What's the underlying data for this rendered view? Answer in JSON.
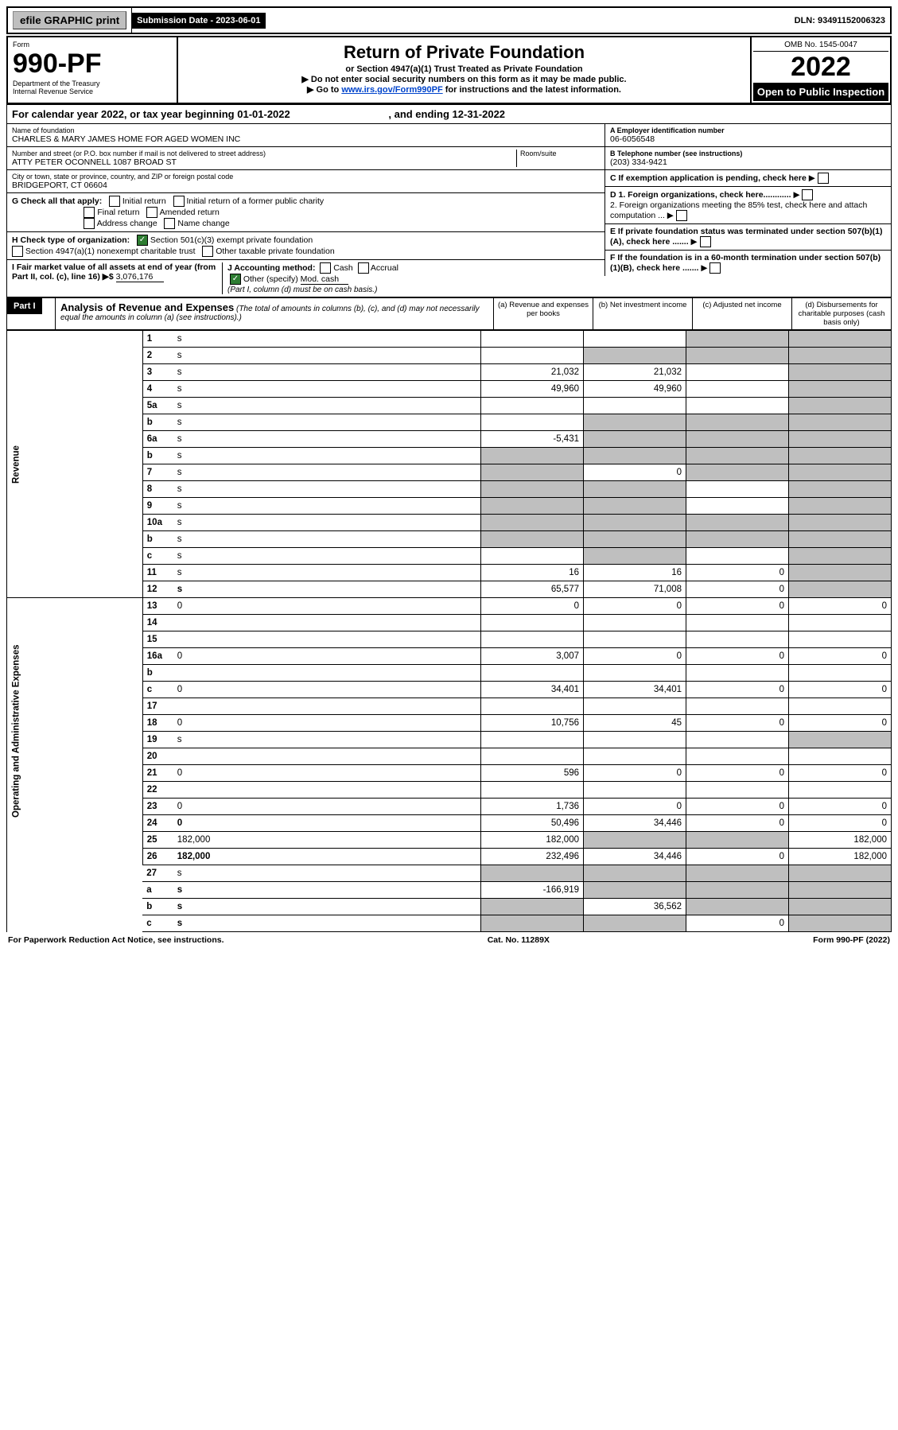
{
  "topbar": {
    "efile": "efile GRAPHIC print",
    "submission_lbl": "Submission Date - ",
    "submission_date": "2023-06-01",
    "dln_lbl": "DLN: ",
    "dln": "93491152006323"
  },
  "header": {
    "form_word": "Form",
    "form_no": "990-PF",
    "dept1": "Department of the Treasury",
    "dept2": "Internal Revenue Service",
    "title": "Return of Private Foundation",
    "subtitle": "or Section 4947(a)(1) Trust Treated as Private Foundation",
    "note1": "▶ Do not enter social security numbers on this form as it may be made public.",
    "note2_pre": "▶ Go to ",
    "note2_link": "www.irs.gov/Form990PF",
    "note2_post": " for instructions and the latest information.",
    "omb_lbl": "OMB No. ",
    "omb": "1545-0047",
    "year": "2022",
    "open": "Open to Public Inspection"
  },
  "cal_year": {
    "pre": "For calendar year 2022, or tax year beginning ",
    "begin": "01-01-2022",
    "end_lbl": " , and ending ",
    "end": "12-31-2022"
  },
  "id": {
    "name_lbl": "Name of foundation",
    "name": "CHARLES & MARY JAMES HOME FOR AGED WOMEN INC",
    "addr_lbl": "Number and street (or P.O. box number if mail is not delivered to street address)",
    "addr": "ATTY PETER OCONNELL 1087 BROAD ST",
    "room_lbl": "Room/suite",
    "city_lbl": "City or town, state or province, country, and ZIP or foreign postal code",
    "city": "BRIDGEPORT, CT  06604",
    "ein_lbl": "A Employer identification number",
    "ein": "06-6056548",
    "tel_lbl": "B Telephone number (see instructions)",
    "tel": "(203) 334-9421",
    "c_lbl": "C If exemption application is pending, check here",
    "d1": "D 1. Foreign organizations, check here............",
    "d2": "2. Foreign organizations meeting the 85% test, check here and attach computation ...",
    "e_lbl": "E If private foundation status was terminated under section 507(b)(1)(A), check here .......",
    "f_lbl": "F If the foundation is in a 60-month termination under section 507(b)(1)(B), check here .......",
    "g_lbl": "G Check all that apply:",
    "g_opts": [
      "Initial return",
      "Final return",
      "Address change",
      "Initial return of a former public charity",
      "Amended return",
      "Name change"
    ],
    "h_lbl": "H Check type of organization:",
    "h_opt1": "Section 501(c)(3) exempt private foundation",
    "h_opt2": "Section 4947(a)(1) nonexempt charitable trust",
    "h_opt3": "Other taxable private foundation",
    "i_lbl": "I Fair market value of all assets at end of year (from Part II, col. (c), line 16) ▶$",
    "i_val": "3,076,176",
    "j_lbl": "J Accounting method:",
    "j_cash": "Cash",
    "j_acc": "Accrual",
    "j_other": "Other (specify)",
    "j_val": "Mod. cash",
    "j_note": "(Part I, column (d) must be on cash basis.)"
  },
  "part1": {
    "label": "Part I",
    "title": "Analysis of Revenue and Expenses",
    "desc": "(The total of amounts in columns (b), (c), and (d) may not necessarily equal the amounts in column (a) (see instructions).)",
    "cols": {
      "a": "(a) Revenue and expenses per books",
      "b": "(b) Net investment income",
      "c": "(c) Adjusted net income",
      "d": "(d) Disbursements for charitable purposes (cash basis only)"
    }
  },
  "rows": [
    {
      "n": "1",
      "d": "s",
      "a": "",
      "b": "",
      "c": "s",
      "sec": "rev"
    },
    {
      "n": "2",
      "d": "s",
      "a": "",
      "b": "s",
      "c": "s",
      "sec": "rev"
    },
    {
      "n": "3",
      "d": "s",
      "a": "21,032",
      "b": "21,032",
      "c": "",
      "sec": "rev"
    },
    {
      "n": "4",
      "d": "s",
      "a": "49,960",
      "b": "49,960",
      "c": "",
      "sec": "rev"
    },
    {
      "n": "5a",
      "d": "s",
      "a": "",
      "b": "",
      "c": "",
      "sec": "rev"
    },
    {
      "n": "b",
      "d": "s",
      "a": "",
      "b": "s",
      "c": "s",
      "sec": "rev"
    },
    {
      "n": "6a",
      "d": "s",
      "a": "-5,431",
      "b": "s",
      "c": "s",
      "sec": "rev"
    },
    {
      "n": "b",
      "d": "s",
      "a": "s",
      "b": "s",
      "c": "s",
      "sec": "rev"
    },
    {
      "n": "7",
      "d": "s",
      "a": "s",
      "b": "0",
      "c": "s",
      "sec": "rev"
    },
    {
      "n": "8",
      "d": "s",
      "a": "s",
      "b": "s",
      "c": "",
      "sec": "rev"
    },
    {
      "n": "9",
      "d": "s",
      "a": "s",
      "b": "s",
      "c": "",
      "sec": "rev"
    },
    {
      "n": "10a",
      "d": "s",
      "a": "s",
      "b": "s",
      "c": "s",
      "sec": "rev"
    },
    {
      "n": "b",
      "d": "s",
      "a": "s",
      "b": "s",
      "c": "s",
      "sec": "rev"
    },
    {
      "n": "c",
      "d": "s",
      "a": "",
      "b": "s",
      "c": "",
      "sec": "rev"
    },
    {
      "n": "11",
      "d": "s",
      "a": "16",
      "b": "16",
      "c": "0",
      "sec": "rev"
    },
    {
      "n": "12",
      "d": "s",
      "a": "65,577",
      "b": "71,008",
      "c": "0",
      "sec": "rev",
      "bold": true
    },
    {
      "n": "13",
      "d": "0",
      "a": "0",
      "b": "0",
      "c": "0",
      "sec": "exp"
    },
    {
      "n": "14",
      "d": "",
      "a": "",
      "b": "",
      "c": "",
      "sec": "exp"
    },
    {
      "n": "15",
      "d": "",
      "a": "",
      "b": "",
      "c": "",
      "sec": "exp"
    },
    {
      "n": "16a",
      "d": "0",
      "a": "3,007",
      "b": "0",
      "c": "0",
      "sec": "exp"
    },
    {
      "n": "b",
      "d": "",
      "a": "",
      "b": "",
      "c": "",
      "sec": "exp"
    },
    {
      "n": "c",
      "d": "0",
      "a": "34,401",
      "b": "34,401",
      "c": "0",
      "sec": "exp"
    },
    {
      "n": "17",
      "d": "",
      "a": "",
      "b": "",
      "c": "",
      "sec": "exp"
    },
    {
      "n": "18",
      "d": "0",
      "a": "10,756",
      "b": "45",
      "c": "0",
      "sec": "exp"
    },
    {
      "n": "19",
      "d": "s",
      "a": "",
      "b": "",
      "c": "",
      "sec": "exp"
    },
    {
      "n": "20",
      "d": "",
      "a": "",
      "b": "",
      "c": "",
      "sec": "exp"
    },
    {
      "n": "21",
      "d": "0",
      "a": "596",
      "b": "0",
      "c": "0",
      "sec": "exp"
    },
    {
      "n": "22",
      "d": "",
      "a": "",
      "b": "",
      "c": "",
      "sec": "exp"
    },
    {
      "n": "23",
      "d": "0",
      "a": "1,736",
      "b": "0",
      "c": "0",
      "sec": "exp"
    },
    {
      "n": "24",
      "d": "0",
      "a": "50,496",
      "b": "34,446",
      "c": "0",
      "sec": "exp",
      "bold": true
    },
    {
      "n": "25",
      "d": "182,000",
      "a": "182,000",
      "b": "s",
      "c": "s",
      "sec": "exp"
    },
    {
      "n": "26",
      "d": "182,000",
      "a": "232,496",
      "b": "34,446",
      "c": "0",
      "sec": "exp",
      "bold": true
    },
    {
      "n": "27",
      "d": "s",
      "a": "s",
      "b": "s",
      "c": "s",
      "sec": "none"
    },
    {
      "n": "a",
      "d": "s",
      "a": "-166,919",
      "b": "s",
      "c": "s",
      "sec": "none",
      "bold": true
    },
    {
      "n": "b",
      "d": "s",
      "a": "s",
      "b": "36,562",
      "c": "s",
      "sec": "none",
      "bold": true
    },
    {
      "n": "c",
      "d": "s",
      "a": "s",
      "b": "s",
      "c": "0",
      "sec": "none",
      "bold": true
    }
  ],
  "side": {
    "rev": "Revenue",
    "exp": "Operating and Administrative Expenses"
  },
  "footer": {
    "left": "For Paperwork Reduction Act Notice, see instructions.",
    "mid": "Cat. No. 11289X",
    "right": "Form 990-PF (2022)"
  }
}
